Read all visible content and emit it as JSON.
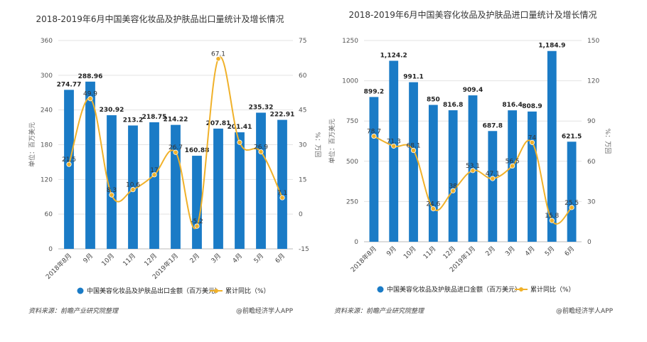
{
  "chart_data": [
    {
      "type": "bar",
      "title": "2018-2019年6月中国美容化妆品及护肤品出口量统计及增长情况",
      "categories": [
        "2018年8月",
        "9月",
        "10月",
        "11月",
        "12月",
        "2019年1月",
        "2月",
        "3月",
        "4月",
        "5月",
        "6月"
      ],
      "series": [
        {
          "name": "中国美容化妆品及护肤品出口金额（百万美元）",
          "type": "bar",
          "axis": "left",
          "values": [
            274.77,
            288.96,
            230.92,
            213.2,
            218.75,
            214.22,
            160.88,
            207.81,
            201.41,
            235.32,
            222.91
          ],
          "labels": [
            "274.77",
            "288.96",
            "230.92",
            "213.2",
            "218.75",
            "214.22",
            "160.88",
            "207.81",
            "201.41",
            "235.32",
            "222.91"
          ],
          "color": "#1a7bc6"
        },
        {
          "name": "累计同比（%）",
          "type": "line",
          "axis": "right",
          "values": [
            21.5,
            49.9,
            8.3,
            10.6,
            17,
            26.7,
            -5.2,
            67.1,
            31,
            26.9,
            7.1
          ],
          "labels": [
            "21.5",
            "49.9",
            "8.3",
            "10.6",
            "17",
            "26.7",
            "-5.2",
            "67.1",
            "",
            "26.9",
            "7.1"
          ],
          "color": "#f0b12a"
        }
      ],
      "ylabel": "单位：百万美元",
      "y2label": "%：万回",
      "ylim": [
        0,
        360
      ],
      "yticks": [
        "0",
        "60",
        "120",
        "180",
        "240",
        "300",
        "360"
      ],
      "y2lim": [
        -15,
        75
      ],
      "y2ticks": [
        "-15",
        "0",
        "15",
        "30",
        "45",
        "60",
        "75"
      ],
      "grid": true,
      "legend": "bottom",
      "source": "资料来源：前瞻产业研究院整理",
      "credit": "@前瞻经济学人APP"
    },
    {
      "type": "bar",
      "title": "2018-2019年6月中国美容化妆品及护肤品进口量统计及增长情况",
      "categories": [
        "2018年8月",
        "9月",
        "10月",
        "11月",
        "12月",
        "2019年1月",
        "2月",
        "3月",
        "4月",
        "5月",
        "6月"
      ],
      "series": [
        {
          "name": "中国美容化妆品及护肤品进口金额（百万美元）",
          "type": "bar",
          "axis": "left",
          "values": [
            899.2,
            1124.2,
            991.1,
            850,
            816.8,
            909.4,
            687.8,
            816.4,
            808.9,
            1184.9,
            621.5
          ],
          "labels": [
            "899.2",
            "1,124.2",
            "991.1",
            "850",
            "816.8",
            "909.4",
            "687.8",
            "816.4",
            "808.9",
            "1,184.9",
            "621.5"
          ],
          "color": "#1a7bc6"
        },
        {
          "name": "累计同比（%）",
          "type": "line",
          "axis": "right",
          "values": [
            78.7,
            71.3,
            68.1,
            24.6,
            38,
            53.1,
            47.1,
            56.5,
            74,
            15.8,
            25.5
          ],
          "labels": [
            "78.7",
            "71.3",
            "68.1",
            "24.6",
            "38",
            "53.1",
            "47.1",
            "56.5",
            "74",
            "15.8",
            "25.5"
          ],
          "color": "#f0b12a"
        }
      ],
      "ylabel": "单位：百万美元",
      "y2label": "%：万回",
      "ylim": [
        0,
        1250
      ],
      "yticks": [
        "0",
        "250",
        "500",
        "750",
        "1000",
        "1250"
      ],
      "y2lim": [
        0,
        150
      ],
      "y2ticks": [
        "0",
        "30",
        "60",
        "90",
        "120",
        "150"
      ],
      "grid": true,
      "legend": "bottom",
      "source": "资料来源：前瞻产业研究院整理",
      "credit": "@前瞻经济学人APP"
    }
  ]
}
